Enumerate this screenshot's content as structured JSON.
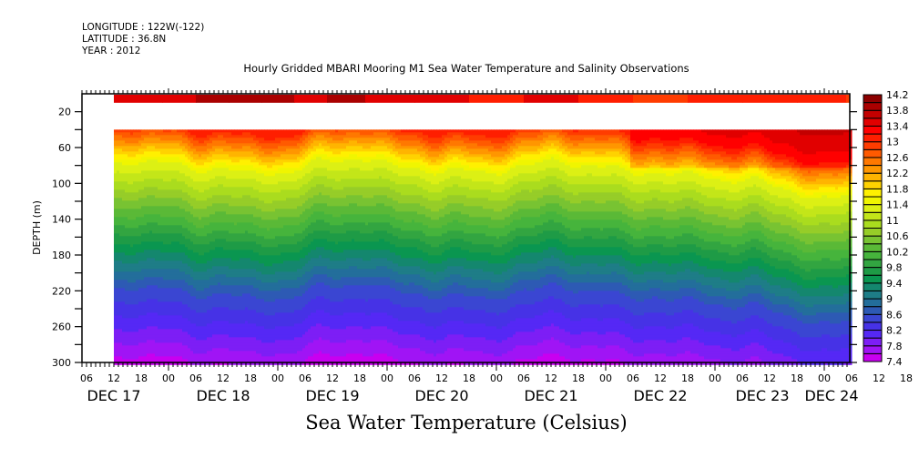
{
  "header": {
    "longitude": "LONGITUDE : 122W(-122)",
    "latitude": "LATITUDE : 36.8N",
    "year": "YEAR : 2012"
  },
  "chart_data": {
    "type": "heatmap",
    "title": "Hourly Gridded MBARI Mooring M1 Sea Water Temperature and Salinity Observations",
    "xlabel": "Sea Water Temperature (Celsius)",
    "ylabel": "DEPTH (m)",
    "y_axis": {
      "range": [
        0,
        300
      ],
      "inverted": true,
      "ticks": [
        20,
        60,
        100,
        140,
        180,
        220,
        260,
        300
      ]
    },
    "x_axis": {
      "start": "DEC 17 05:00",
      "end": "DEC 24 06:00",
      "hour_ticks": [
        "06",
        "12",
        "18",
        "00",
        "06",
        "12",
        "18",
        "00",
        "06",
        "12",
        "18",
        "00",
        "06",
        "12",
        "18",
        "00",
        "06",
        "12",
        "18",
        "00",
        "06",
        "12",
        "18",
        "00",
        "06",
        "12",
        "18",
        "00",
        "06",
        "12",
        "18",
        "00"
      ],
      "day_labels": [
        "DEC 17",
        "DEC 18",
        "DEC 19",
        "DEC 20",
        "DEC 21",
        "DEC 22",
        "DEC 23",
        "DEC 24"
      ],
      "data_start": "DEC 17 12:00"
    },
    "colorbar": {
      "levels": [
        7.4,
        7.6,
        7.8,
        8.0,
        8.2,
        8.4,
        8.6,
        8.8,
        9.0,
        9.2,
        9.4,
        9.6,
        9.8,
        10.0,
        10.2,
        10.4,
        10.6,
        10.8,
        11.0,
        11.2,
        11.4,
        11.6,
        11.8,
        12.0,
        12.2,
        12.4,
        12.6,
        12.8,
        13.0,
        13.2,
        13.4,
        13.6,
        13.8,
        14.0,
        14.2
      ],
      "labels": [
        "7.4",
        "7.8",
        "8.2",
        "8.6",
        "9",
        "9.4",
        "9.8",
        "10.2",
        "10.6",
        "11",
        "11.4",
        "11.8",
        "12.2",
        "12.6",
        "13",
        "13.4",
        "13.8",
        "14.2"
      ],
      "colors": [
        "#c800f0",
        "#a014f5",
        "#7d1ef5",
        "#5528f5",
        "#4632e6",
        "#3a46d2",
        "#2d5ab4",
        "#236e9b",
        "#1e7d87",
        "#14876e",
        "#0a9650",
        "#1e9b46",
        "#32a541",
        "#46b43c",
        "#5ab937",
        "#78c332",
        "#96cd28",
        "#aadc1e",
        "#c3e619",
        "#dcf014",
        "#f0f500",
        "#fff000",
        "#ffd200",
        "#ffb400",
        "#ff9600",
        "#ff7800",
        "#ff5a00",
        "#ff3c00",
        "#ff1e00",
        "#ff0000",
        "#e10000",
        "#c30000",
        "#aa0000",
        "#8c0000"
      ]
    },
    "description": "Depth-time contour of sea water temperature at MBARI M1 mooring, Dec 17-24 2012. Warm surface layer (~13-14 C) in top 10 m, gap (no data) 10-40 m, thermocline near 40-100 m (12-11 C), cooling to ~7.4-8 C at 300 m. Surface layer warmer (13.6-14.0) Dec 18; upper layer ~13 C from Dec 22 onward.",
    "surface_band": {
      "depth_range": [
        2,
        10
      ],
      "times_days": [
        0.29,
        0.6,
        0.9,
        1.2,
        1.5,
        1.8,
        2.1,
        2.5,
        3.0,
        3.5,
        4.0,
        4.5,
        5.0,
        5.5,
        6.0,
        6.5,
        6.9
      ],
      "values": [
        13.4,
        13.6,
        13.8,
        14.0,
        13.8,
        13.6,
        13.8,
        13.4,
        13.4,
        13.2,
        13.4,
        13.2,
        13.0,
        13.2,
        13.2,
        13.2,
        13.0
      ]
    },
    "data_gap_depth": [
      10,
      40
    ]
  }
}
